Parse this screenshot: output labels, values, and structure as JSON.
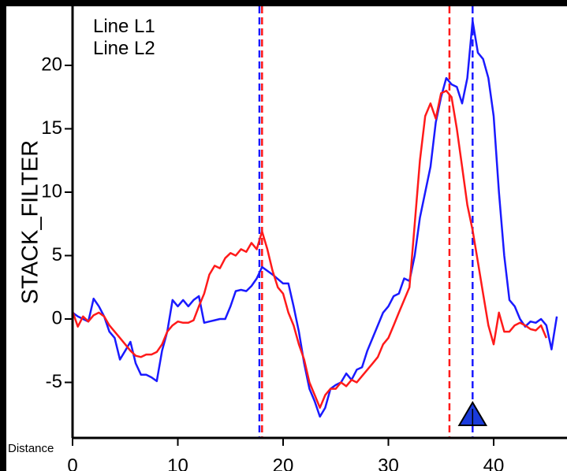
{
  "chart_data": {
    "type": "line",
    "title": "",
    "xlabel": "Distance",
    "ylabel": "STACK_FILTER",
    "xlim": [
      0,
      46
    ],
    "ylim": [
      -9.5,
      25
    ],
    "x_ticks": [
      0,
      10,
      20,
      30,
      40
    ],
    "x_tick_labels": [
      "0",
      "10",
      "20",
      "30",
      "40"
    ],
    "y_ticks": [
      -5,
      0,
      5,
      10,
      15,
      20
    ],
    "y_tick_labels": [
      "-5",
      "0",
      "5",
      "10",
      "15",
      "20"
    ],
    "grid": false,
    "legend": {
      "placement": "top-left",
      "entries": [
        "Line L1",
        "Line L2"
      ]
    },
    "series": [
      {
        "name": "Line L1",
        "color": "#1a1aff",
        "x": [
          0,
          0.5,
          1,
          1.5,
          2,
          2.5,
          3,
          3.5,
          4,
          4.5,
          5,
          5.5,
          6,
          6.5,
          7,
          7.5,
          8,
          8.5,
          9,
          9.5,
          10,
          10.5,
          11,
          11.5,
          12,
          12.5,
          13,
          13.5,
          14,
          14.5,
          15,
          15.5,
          16,
          16.5,
          17,
          17.5,
          18,
          19,
          20,
          20.5,
          21,
          21.5,
          22,
          22.5,
          23,
          23.5,
          24,
          24.5,
          25,
          25.5,
          26,
          26.5,
          27,
          27.5,
          28,
          28.5,
          29,
          29.5,
          30,
          30.5,
          31,
          31.5,
          32,
          32.5,
          33,
          33.5,
          34,
          34.5,
          35,
          35.5,
          36,
          36.5,
          37,
          37.5,
          38,
          38.5,
          39,
          39.5,
          40,
          40.5,
          41,
          41.5,
          42,
          42.5,
          43,
          43.5,
          44,
          44.5,
          45,
          45.5,
          46
        ],
        "y": [
          0.5,
          0.2,
          0.0,
          -0.2,
          1.6,
          1.0,
          0.2,
          -1.0,
          -1.5,
          -3.2,
          -2.5,
          -1.8,
          -3.5,
          -4.4,
          -4.4,
          -4.6,
          -4.9,
          -2.5,
          -1.0,
          1.5,
          1.0,
          1.5,
          1.0,
          1.5,
          1.8,
          -0.3,
          -0.2,
          -0.1,
          0.0,
          0.0,
          1.0,
          2.2,
          2.3,
          2.2,
          2.6,
          3.2,
          4.1,
          3.5,
          2.8,
          2.8,
          1.0,
          -1.0,
          -3.5,
          -5.5,
          -6.5,
          -7.7,
          -7.0,
          -5.5,
          -5.2,
          -5.0,
          -4.3,
          -4.8,
          -4.0,
          -3.8,
          -2.5,
          -1.5,
          -0.5,
          0.5,
          1.0,
          1.8,
          2.0,
          3.2,
          3.0,
          5.0,
          8.0,
          10.0,
          12.0,
          15.5,
          17.5,
          19.0,
          18.5,
          18.3,
          17.0,
          19.0,
          23.5,
          21.0,
          20.5,
          19.0,
          16.0,
          10.0,
          5.0,
          1.5,
          1.0,
          0.0,
          -0.6,
          -0.2,
          -0.3,
          0.0,
          -0.5,
          -2.4,
          0.2
        ]
      },
      {
        "name": "Line L2",
        "color": "#ff1a1a",
        "x": [
          0,
          0.5,
          1,
          1.5,
          2,
          2.5,
          3,
          3.5,
          4,
          4.5,
          5,
          5.5,
          6,
          6.5,
          7,
          7.5,
          8,
          8.5,
          9,
          9.5,
          10,
          10.5,
          11,
          11.5,
          12,
          12.5,
          13,
          13.5,
          14,
          14.5,
          15,
          15.5,
          16,
          16.5,
          17,
          17.5,
          18,
          18.5,
          19,
          19.5,
          20,
          20.5,
          21,
          21.5,
          22,
          22.5,
          23,
          23.5,
          24,
          24.5,
          25,
          25.5,
          26,
          26.5,
          27,
          27.5,
          28,
          28.5,
          29,
          29.5,
          30,
          30.5,
          31,
          31.5,
          32,
          32.5,
          33,
          33.5,
          34,
          34.5,
          35,
          35.5,
          36,
          36.5,
          37,
          37.5,
          38,
          38.5,
          39,
          39.5,
          40,
          40.5,
          41,
          41.5,
          42,
          42.5,
          43,
          43.5,
          44,
          44.5,
          45
        ],
        "y": [
          0.6,
          -0.6,
          0.2,
          -0.2,
          0.3,
          0.5,
          0.2,
          -0.5,
          -1.0,
          -1.5,
          -2.0,
          -2.5,
          -2.9,
          -3.0,
          -2.8,
          -2.8,
          -2.6,
          -2.0,
          -1.0,
          -0.5,
          -0.2,
          -0.3,
          -0.3,
          -0.1,
          1.0,
          2.0,
          3.5,
          4.2,
          4.0,
          4.8,
          5.2,
          5.0,
          5.5,
          5.3,
          6.0,
          5.5,
          6.9,
          5.5,
          3.8,
          2.5,
          2.0,
          0.5,
          -0.5,
          -2.0,
          -3.2,
          -5.0,
          -6.0,
          -7.0,
          -6.0,
          -5.5,
          -5.5,
          -5.0,
          -5.3,
          -4.8,
          -5.0,
          -4.5,
          -4.0,
          -3.5,
          -3.0,
          -2.0,
          -1.5,
          -0.5,
          0.5,
          1.5,
          2.5,
          7.5,
          12.5,
          16.0,
          17.0,
          15.8,
          17.8,
          18.0,
          17.5,
          15.0,
          12.0,
          9.0,
          7.0,
          4.5,
          2.0,
          -0.5,
          -2.0,
          0.5,
          -1.0,
          -1.0,
          -0.5,
          -0.3,
          -0.5,
          -0.8,
          -0.9,
          -0.5,
          -1.5
        ]
      }
    ],
    "markers": [
      {
        "name": "l1-vertical-1",
        "x": 17.75,
        "color": "#1a1aff"
      },
      {
        "name": "l2-vertical-1",
        "x": 18.0,
        "color": "#ff1a1a"
      },
      {
        "name": "l2-vertical-2",
        "x": 35.8,
        "color": "#ff1a1a"
      },
      {
        "name": "l1-vertical-2",
        "x": 38.0,
        "color": "#1a1aff"
      }
    ],
    "pick": {
      "x": 38.0,
      "color": "#1a3bdc"
    },
    "colors": {
      "background": "#ffffff",
      "frame": "#000000",
      "axis": "#000000"
    }
  }
}
